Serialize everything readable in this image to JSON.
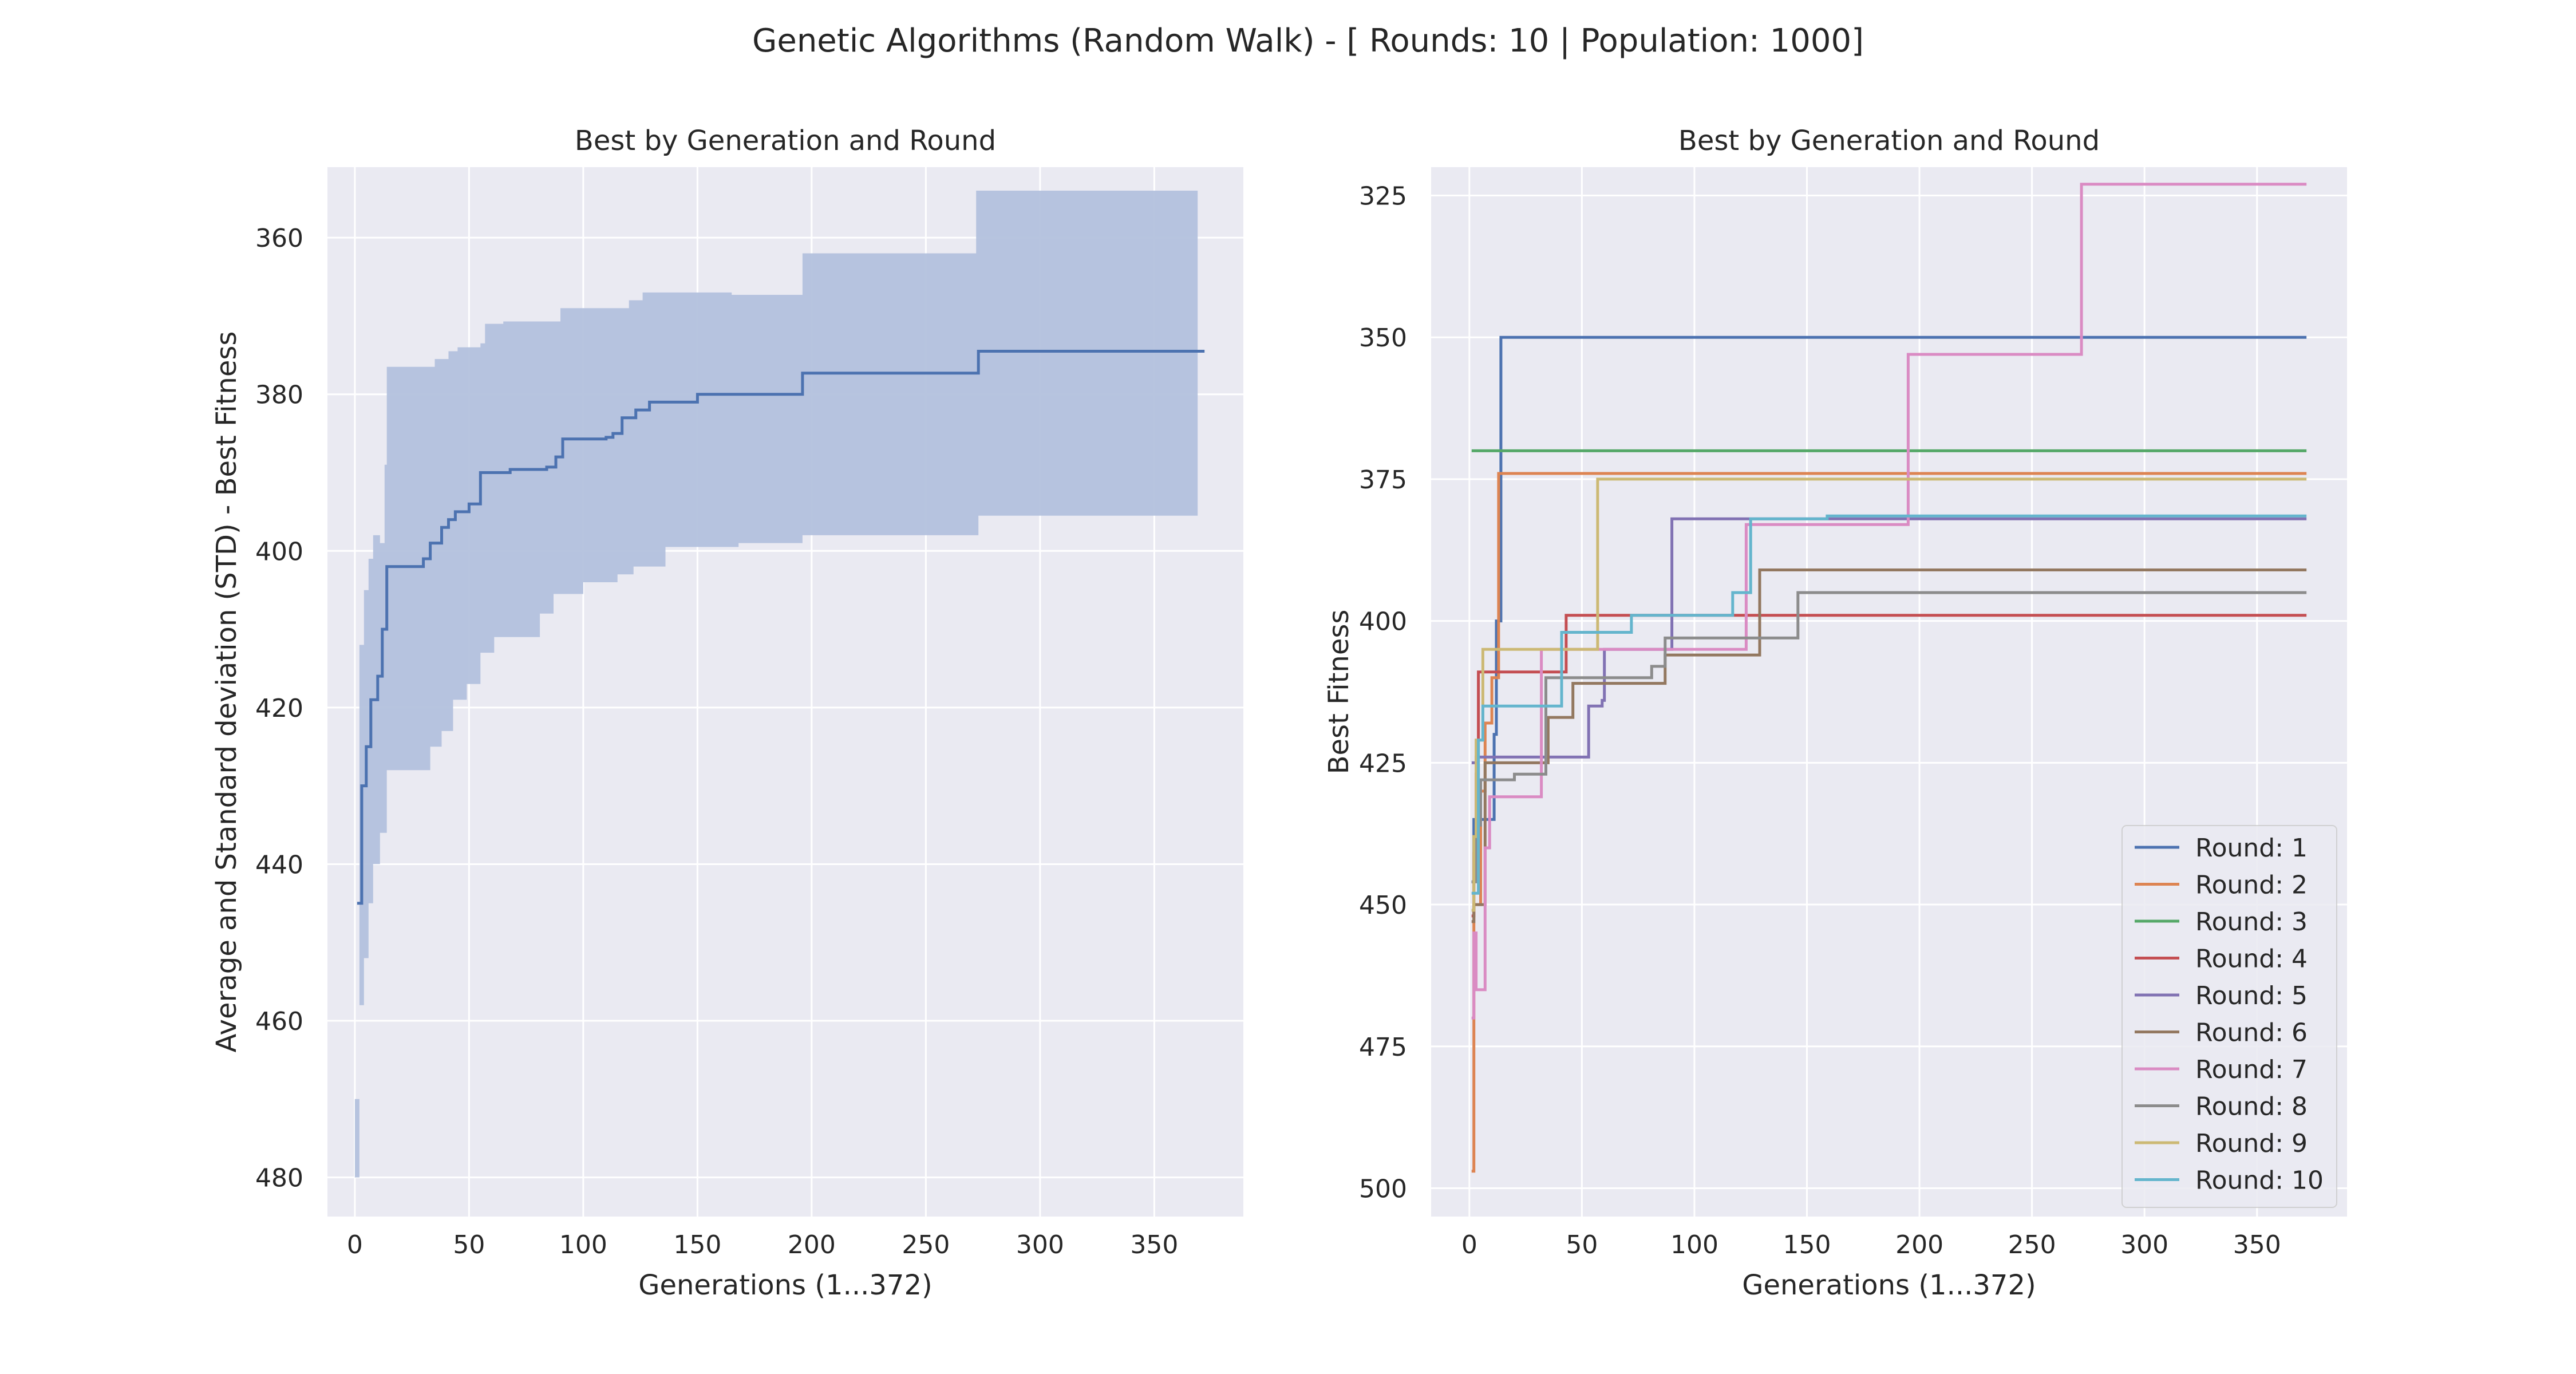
{
  "figure": {
    "suptitle": "Genetic Algorithms (Random Walk) - [ Rounds: 10 | Population: 1000]"
  },
  "chart_data": [
    {
      "type": "line",
      "title": "Best by Generation and Round",
      "xlabel": "Generations (1...372)",
      "ylabel": "Average and Standard deviation (STD) - Best Fitness",
      "xlim": [
        -12,
        389
      ],
      "ylim": [
        485,
        351
      ],
      "y_inverted": true,
      "grid": true,
      "x_ticks": [
        0,
        50,
        100,
        150,
        200,
        250,
        300,
        350
      ],
      "y_ticks": [
        360,
        380,
        400,
        420,
        440,
        460,
        480
      ],
      "series": [
        {
          "color": "#4c72b0",
          "mean": [
            [
              1,
              445
            ],
            [
              3,
              430
            ],
            [
              5,
              425
            ],
            [
              7,
              419
            ],
            [
              10,
              416
            ],
            [
              12,
              410
            ],
            [
              14,
              402
            ],
            [
              30,
              401
            ],
            [
              33,
              399
            ],
            [
              38,
              397
            ],
            [
              41,
              396
            ],
            [
              44,
              395
            ],
            [
              50,
              394
            ],
            [
              55,
              390
            ],
            [
              68,
              389.6
            ],
            [
              84,
              389.3
            ],
            [
              88,
              388
            ],
            [
              91,
              385.7
            ],
            [
              110,
              385.5
            ],
            [
              113,
              385
            ],
            [
              117,
              383
            ],
            [
              123,
              382
            ],
            [
              129,
              381
            ],
            [
              150,
              380
            ],
            [
              194,
              380
            ],
            [
              196,
              377.3
            ],
            [
              271,
              377.3
            ],
            [
              273,
              374.5
            ],
            [
              372,
              374.5
            ]
          ],
          "band_upper": [
            [
              0,
              470
            ],
            [
              2,
              412
            ],
            [
              4,
              405
            ],
            [
              6,
              401
            ],
            [
              8,
              398
            ],
            [
              11,
              399
            ],
            [
              13,
              389
            ],
            [
              14,
              376.5
            ],
            [
              32,
              376.5
            ],
            [
              35,
              375.5
            ],
            [
              41,
              374.5
            ],
            [
              45,
              374
            ],
            [
              55,
              373.5
            ],
            [
              57,
              371
            ],
            [
              65,
              370.7
            ],
            [
              89,
              370.7
            ],
            [
              90,
              369
            ],
            [
              118,
              369
            ],
            [
              120,
              368
            ],
            [
              126,
              367
            ],
            [
              158,
              367
            ],
            [
              165,
              367.3
            ],
            [
              194,
              367.3
            ],
            [
              196,
              362
            ],
            [
              271,
              362
            ],
            [
              272,
              354
            ],
            [
              369,
              354
            ]
          ],
          "band_lower": [
            [
              0,
              480
            ],
            [
              2,
              458
            ],
            [
              4,
              452
            ],
            [
              6,
              445
            ],
            [
              8,
              440
            ],
            [
              11,
              436
            ],
            [
              14,
              428
            ],
            [
              31,
              428
            ],
            [
              33,
              425
            ],
            [
              38,
              423
            ],
            [
              43,
              419
            ],
            [
              49,
              417
            ],
            [
              55,
              413
            ],
            [
              61,
              411
            ],
            [
              75,
              411
            ],
            [
              81,
              408
            ],
            [
              87,
              405.5
            ],
            [
              100,
              404
            ],
            [
              115,
              403
            ],
            [
              122,
              402
            ],
            [
              136,
              399.5
            ],
            [
              168,
              399
            ],
            [
              196,
              398
            ],
            [
              271,
              398
            ],
            [
              273,
              395.5
            ],
            [
              369,
              395.5
            ]
          ],
          "band_color": "#b3c1dd"
        }
      ]
    },
    {
      "type": "line",
      "title": "Best by Generation and Round",
      "xlabel": "Generations (1...372)",
      "ylabel": "Best Fitness",
      "xlim": [
        -17,
        390
      ],
      "ylim": [
        505,
        320
      ],
      "y_inverted": true,
      "grid": true,
      "legend_position": "bottom-right",
      "x_ticks": [
        0,
        50,
        100,
        150,
        200,
        250,
        300,
        350
      ],
      "y_ticks": [
        325,
        350,
        375,
        400,
        425,
        450,
        475,
        500
      ],
      "series": [
        {
          "name": "Round: 1",
          "color": "#4c72b0",
          "points": [
            [
              1,
              446
            ],
            [
              2,
              435
            ],
            [
              10,
              435
            ],
            [
              11,
              420
            ],
            [
              12,
              400
            ],
            [
              14,
              350
            ],
            [
              372,
              350
            ]
          ]
        },
        {
          "name": "Round: 2",
          "color": "#dd8452",
          "points": [
            [
              1,
              497
            ],
            [
              2,
              450
            ],
            [
              5,
              430
            ],
            [
              7,
              418
            ],
            [
              10,
              410
            ],
            [
              13,
              374
            ],
            [
              372,
              374
            ]
          ]
        },
        {
          "name": "Round: 3",
          "color": "#55a868",
          "points": [
            [
              1,
              370
            ],
            [
              372,
              370
            ]
          ]
        },
        {
          "name": "Round: 4",
          "color": "#c44e52",
          "points": [
            [
              1,
              452
            ],
            [
              2,
              441
            ],
            [
              3,
              427
            ],
            [
              4,
              409
            ],
            [
              41,
              409
            ],
            [
              43,
              399
            ],
            [
              372,
              399
            ]
          ]
        },
        {
          "name": "Round: 5",
          "color": "#8172b3",
          "points": [
            [
              1,
              425
            ],
            [
              3,
              424
            ],
            [
              51,
              424
            ],
            [
              53,
              415
            ],
            [
              59,
              414
            ],
            [
              60,
              405
            ],
            [
              89,
              405
            ],
            [
              90,
              382
            ],
            [
              372,
              382
            ]
          ]
        },
        {
          "name": "Round: 6",
          "color": "#937860",
          "points": [
            [
              1,
              453
            ],
            [
              2,
              450
            ],
            [
              6,
              450
            ],
            [
              7,
              425
            ],
            [
              33,
              425
            ],
            [
              35,
              417
            ],
            [
              44,
              417
            ],
            [
              46,
              411
            ],
            [
              85,
              411
            ],
            [
              87,
              406
            ],
            [
              127,
              406
            ],
            [
              129,
              391
            ],
            [
              372,
              391
            ]
          ]
        },
        {
          "name": "Round: 7",
          "color": "#da8bc3",
          "points": [
            [
              1,
              470
            ],
            [
              2,
              455
            ],
            [
              3,
              465
            ],
            [
              6,
              465
            ],
            [
              7,
              440
            ],
            [
              9,
              431
            ],
            [
              30,
              431
            ],
            [
              32,
              405
            ],
            [
              121,
              405
            ],
            [
              123,
              383
            ],
            [
              193,
              383
            ],
            [
              195,
              353
            ],
            [
              270,
              353
            ],
            [
              272,
              323
            ],
            [
              372,
              323
            ]
          ]
        },
        {
          "name": "Round: 8",
          "color": "#8c8c8c",
          "points": [
            [
              1,
              446
            ],
            [
              3,
              436
            ],
            [
              5,
              428
            ],
            [
              16,
              428
            ],
            [
              20,
              427
            ],
            [
              32,
              427
            ],
            [
              34,
              410
            ],
            [
              79,
              410
            ],
            [
              81,
              408
            ],
            [
              85,
              408
            ],
            [
              87,
              403
            ],
            [
              144,
              403
            ],
            [
              146,
              395
            ],
            [
              372,
              395
            ]
          ]
        },
        {
          "name": "Round: 9",
          "color": "#ccb974",
          "points": [
            [
              1,
              451
            ],
            [
              2,
              438
            ],
            [
              3,
              421
            ],
            [
              6,
              405
            ],
            [
              55,
              405
            ],
            [
              57,
              375
            ],
            [
              372,
              375
            ]
          ]
        },
        {
          "name": "Round: 10",
          "color": "#64b5cd",
          "points": [
            [
              1,
              448
            ],
            [
              4,
              421
            ],
            [
              6,
              415
            ],
            [
              39,
              415
            ],
            [
              41,
              402
            ],
            [
              70,
              402
            ],
            [
              72,
              399
            ],
            [
              115,
              399
            ],
            [
              117,
              395
            ],
            [
              123,
              395
            ],
            [
              125,
              382
            ],
            [
              157,
              382
            ],
            [
              159,
              381.5
            ],
            [
              372,
              381.5
            ]
          ]
        }
      ]
    }
  ]
}
